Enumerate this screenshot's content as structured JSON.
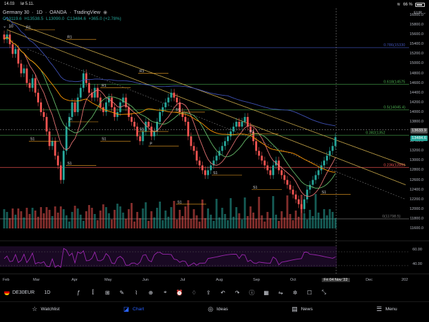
{
  "status": {
    "time": "14.03",
    "date": "lø 5.11.",
    "battery": "66 %"
  },
  "legend": {
    "symbol_name": "Germany 30",
    "interval": "1D",
    "exchange": "OANDA",
    "platform": "TradingView",
    "ohlc": {
      "o": "O13119.6",
      "h": "H13538.5",
      "l": "L13090.0",
      "c": "C13484.6",
      "chg": "+365.0 (+2.78%)"
    },
    "indicator_count": "10"
  },
  "currency": "EUR",
  "price_axis": [
    "16000.0",
    "15800.0",
    "15600.0",
    "15400.0",
    "15200.0",
    "15000.0",
    "14800.0",
    "14600.0",
    "14400.0",
    "14200.0",
    "14000.0",
    "13800.0",
    "13400.0",
    "13200.0",
    "13000.0",
    "12800.0",
    "12600.0",
    "12400.0",
    "12200.0",
    "12000.0",
    "11800.0",
    "11600.0"
  ],
  "rsi_axis": [
    "60.00",
    "40.00"
  ],
  "price_tags": {
    "high": "13633.9",
    "current": "13484.6"
  },
  "fib_labels": {
    "f786": "0.786(15330",
    "f618": "0.618(14575",
    "f5": "0.5(14045.4)",
    "f382": "0.382(1352",
    "f236": "0.236(12859",
    "f0": "0(11798.5)"
  },
  "pivot_labels": [
    "R1",
    "R1",
    "R1",
    "R1",
    "R1",
    "R1",
    "P",
    "P",
    "S1",
    "S1",
    "S1",
    "S1",
    "S1",
    "S1",
    "S1",
    "S1"
  ],
  "time_axis": [
    "Feb",
    "Mar",
    "Apr",
    "May",
    "Jun",
    "Jul",
    "Aug",
    "Sep",
    "Oct",
    "Fri 04 Nov '22",
    "Dec",
    "202"
  ],
  "toolbar": {
    "symbol": "DE30EUR",
    "interval": "1D"
  },
  "nav": {
    "watchlist": "Watchlist",
    "chart": "Chart",
    "ideas": "Ideas",
    "news": "News",
    "menu": "Menu"
  },
  "colors": {
    "up": "#26a69a",
    "down": "#ef5350",
    "accent": "#2962ff",
    "fib": "#4caf50",
    "ma": "#3f51b5",
    "trend": "#c8a84a"
  },
  "chart_data": {
    "type": "candlestick",
    "candles_close": [
      15500,
      15600,
      15400,
      15200,
      15300,
      15000,
      14800,
      14900,
      14600,
      14500,
      14700,
      14400,
      14200,
      14000,
      13900,
      13600,
      13300,
      13400,
      13100,
      12900,
      12600,
      13200,
      13700,
      13900,
      14200,
      14000,
      14300,
      14500,
      14800,
      14600,
      14400,
      14300,
      14500,
      14300,
      14100,
      14000,
      14200,
      14300,
      14100,
      13900,
      14000,
      14200,
      14300,
      14100,
      13900,
      13800,
      13700,
      13500,
      13400,
      13600,
      13800,
      13700,
      13500,
      13600,
      13800,
      14000,
      14100,
      14200,
      14300,
      14400,
      14300,
      14200,
      14000,
      13900,
      13800,
      13500,
      13300,
      13200,
      13000,
      12900,
      12800,
      12700,
      12800,
      12900,
      13000,
      13100,
      13200,
      13300,
      13400,
      13500,
      13600,
      13700,
      13800,
      13700,
      13800,
      13900,
      13700,
      13600,
      13400,
      13200,
      13100,
      13000,
      12900,
      12800,
      12700,
      12900,
      13000,
      12800,
      12700,
      12600,
      12500,
      12400,
      12300,
      12200,
      12100,
      12000,
      12200,
      12400,
      12500,
      12600,
      12700,
      12800,
      12900,
      13000,
      13100,
      13200,
      13300,
      13484.6
    ],
    "ylim": [
      11500,
      16100
    ]
  }
}
